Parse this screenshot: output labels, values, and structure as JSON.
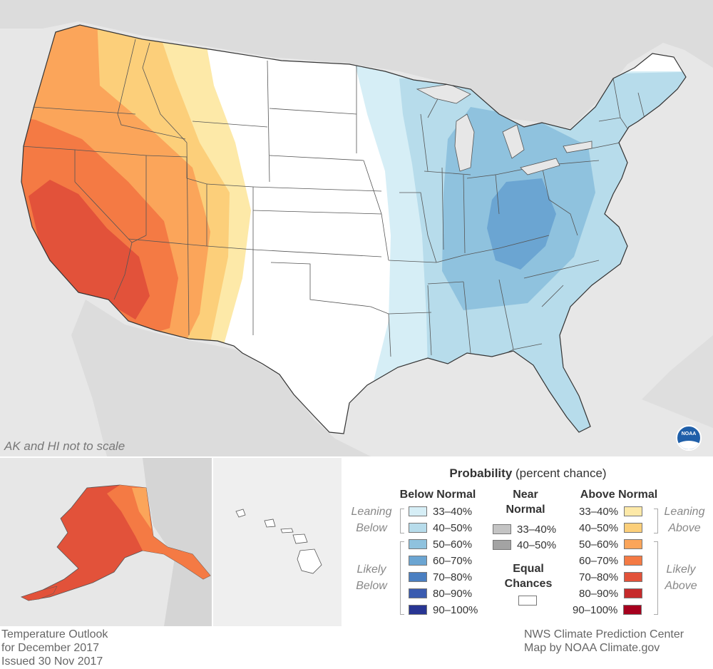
{
  "notes": {
    "scale": "AK and HI not to scale"
  },
  "logo": {
    "text": "NOAA"
  },
  "legend": {
    "title_bold": "Probability",
    "title_rest": " (percent chance)",
    "below": {
      "header": "Below Normal",
      "leaning_label": [
        "Leaning",
        "Below"
      ],
      "likely_label": [
        "Likely",
        "Below"
      ],
      "items": [
        {
          "label": "33–40%",
          "color": "#d6eef6"
        },
        {
          "label": "40–50%",
          "color": "#b7dceb"
        },
        {
          "label": "50–60%",
          "color": "#8fc2de"
        },
        {
          "label": "60–70%",
          "color": "#6ba5d2"
        },
        {
          "label": "70–80%",
          "color": "#4a7fc1"
        },
        {
          "label": "80–90%",
          "color": "#3a5bb0"
        },
        {
          "label": "90–100%",
          "color": "#283593"
        }
      ]
    },
    "near": {
      "header": [
        "Near",
        "Normal"
      ],
      "items": [
        {
          "label": "33–40%",
          "color": "#c4c4c4"
        },
        {
          "label": "40–50%",
          "color": "#a3a3a3"
        }
      ]
    },
    "equal": {
      "header": [
        "Equal",
        "Chances"
      ],
      "color": "#ffffff"
    },
    "above": {
      "header": "Above Normal",
      "leaning_label": [
        "Leaning",
        "Above"
      ],
      "likely_label": [
        "Likely",
        "Above"
      ],
      "items": [
        {
          "label": "33–40%",
          "color": "#fde9a8"
        },
        {
          "label": "40–50%",
          "color": "#fccf7a"
        },
        {
          "label": "50–60%",
          "color": "#fba55a"
        },
        {
          "label": "60–70%",
          "color": "#f47a44"
        },
        {
          "label": "70–80%",
          "color": "#e2523a"
        },
        {
          "label": "80–90%",
          "color": "#c62a2b"
        },
        {
          "label": "90–100%",
          "color": "#a6001e"
        }
      ]
    }
  },
  "footer": {
    "left": [
      "Temperature Outlook",
      "for December 2017",
      "Issued 30 Nov 2017"
    ],
    "right": [
      "NWS Climate Prediction Center",
      "Map by NOAA Climate.gov"
    ]
  }
}
